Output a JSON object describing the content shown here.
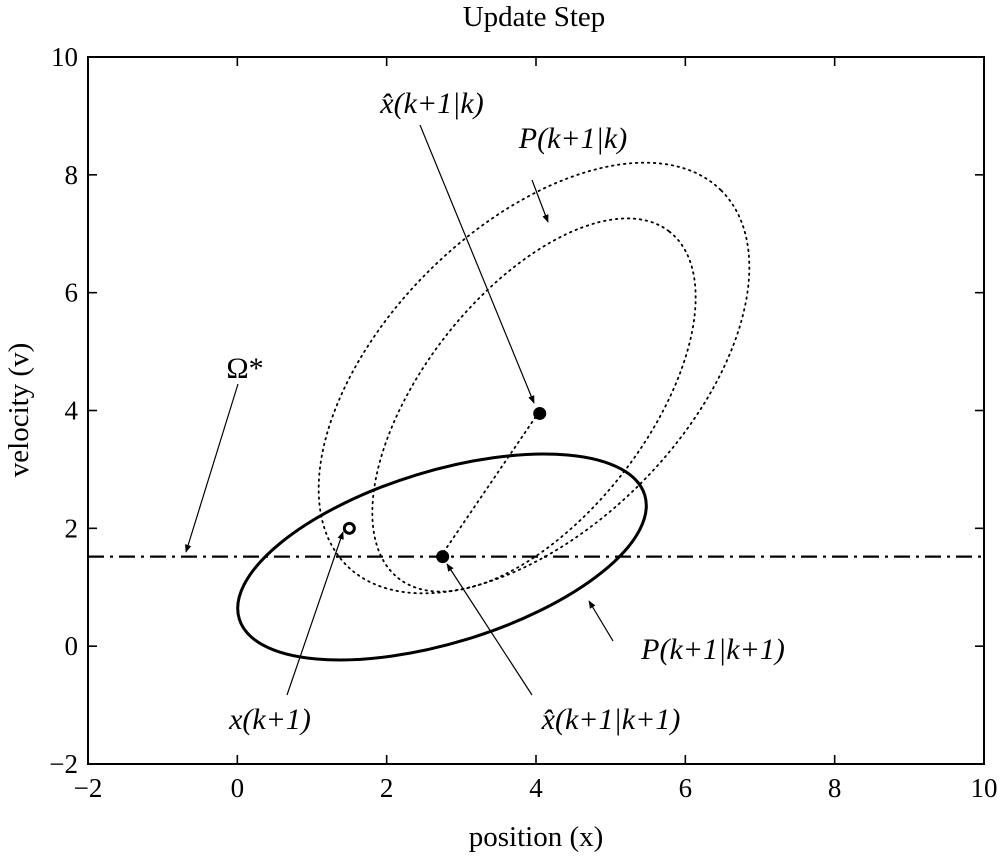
{
  "chart_data": {
    "type": "scatter",
    "title": "Update Step",
    "xlabel": "position (x)",
    "ylabel": "velocity (v)",
    "xlim": [
      -2,
      10
    ],
    "ylim": [
      -2,
      10
    ],
    "xticks": [
      -2,
      0,
      2,
      4,
      6,
      8,
      10
    ],
    "yticks": [
      -2,
      0,
      2,
      4,
      6,
      8,
      10
    ],
    "xtick_labels": [
      "−2",
      "0",
      "2",
      "4",
      "6",
      "8",
      "10"
    ],
    "ytick_labels": [
      "−2",
      "0",
      "2",
      "4",
      "6",
      "8",
      "10"
    ],
    "grid": false,
    "points": [
      {
        "id": "x_hat_prior",
        "label": "x̂(k+1|k)",
        "x": 4.05,
        "y": 3.95,
        "marker": "filled"
      },
      {
        "id": "x_hat_post",
        "label": "x̂(k+1|k+1)",
        "x": 2.75,
        "y": 1.52,
        "marker": "filled"
      },
      {
        "id": "x_true",
        "label": "x(k+1)",
        "x": 1.5,
        "y": 2.0,
        "marker": "open"
      }
    ],
    "constraint_line": {
      "label": "Ω*",
      "y": 1.52,
      "style": "dash-dot"
    },
    "ellipses": [
      {
        "label": "P(k+1|k)",
        "center": [
          4.05,
          3.95
        ],
        "style": "dotted",
        "contours": 2
      },
      {
        "label": "P(k+1|k+1)",
        "center": [
          2.75,
          1.52
        ],
        "style": "solid",
        "contours": 1
      }
    ],
    "annotations": [
      {
        "text": "x̂(k+1|k)",
        "target": "x_hat_prior"
      },
      {
        "text": "P(k+1|k)",
        "target": "prior covariance ellipse"
      },
      {
        "text": "Ω*",
        "target": "constraint line"
      },
      {
        "text": "x(k+1)",
        "target": "x_true"
      },
      {
        "text": "x̂(k+1|k+1)",
        "target": "x_hat_post"
      },
      {
        "text": "P(k+1|k+1)",
        "target": "posterior covariance ellipse"
      }
    ]
  }
}
